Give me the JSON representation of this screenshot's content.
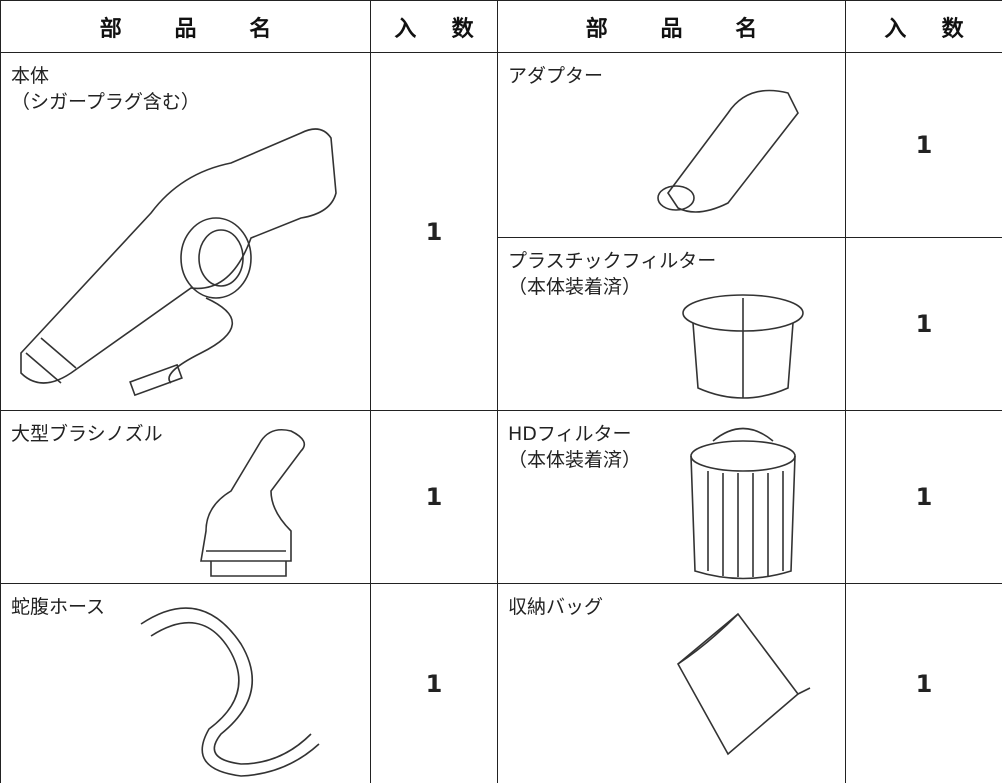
{
  "table": {
    "header": [
      "部品名",
      "入数",
      "部品名",
      "入数"
    ],
    "left": [
      {
        "name": [
          "本体",
          "（シガープラグ含む）"
        ],
        "qty": 1
      },
      {
        "name": [
          "大型ブラシノズル"
        ],
        "qty": 1
      },
      {
        "name": [
          "蛇腹ホース"
        ],
        "qty": 1
      }
    ],
    "right": [
      {
        "name": [
          "アダプター"
        ],
        "qty": 1
      },
      {
        "name": [
          "プラスチックフィルター",
          "（本体装着済）"
        ],
        "qty": 1
      },
      {
        "name": [
          "HDフィルター",
          "（本体装着済）"
        ],
        "qty": 1
      },
      {
        "name": [
          "収納バッグ"
        ],
        "qty": 1
      }
    ]
  }
}
